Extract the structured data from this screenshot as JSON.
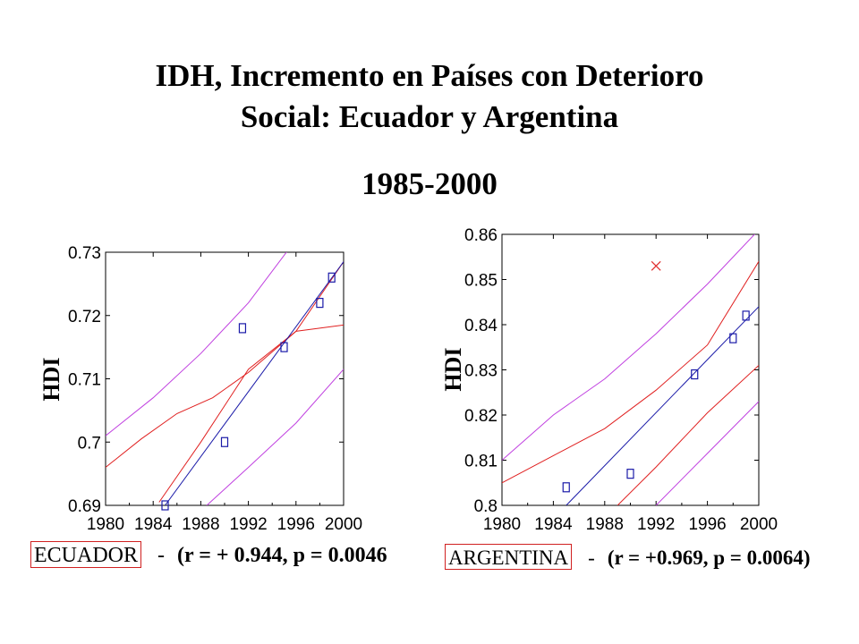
{
  "title": {
    "line1": "IDH, Incremento en Países con Deterioro",
    "line2": "Social: Ecuador y Argentina",
    "period": "1985-2000"
  },
  "colors": {
    "points": "#1a1aa8",
    "fit": "#1a1aa8",
    "confidence": "#e02020",
    "prediction": "#c040e0",
    "outlier": "#e03030",
    "highlight_box": "#d02020"
  },
  "chart_data": [
    {
      "type": "scatter",
      "name": "ECUADOR",
      "ylabel": "HDI",
      "xlim": [
        1980,
        2000
      ],
      "ylim": [
        0.69,
        0.73
      ],
      "xticks": [
        1980,
        1984,
        1988,
        1992,
        1996,
        2000
      ],
      "yticks": [
        0.69,
        0.7,
        0.71,
        0.72,
        0.73
      ],
      "xtick_labels": [
        "1980",
        "1984",
        "1988",
        "1992",
        "1996",
        "2000"
      ],
      "ytick_labels": [
        "0.69",
        "0.7",
        "0.71",
        "0.72",
        "0.73"
      ],
      "points": [
        {
          "x": 1985,
          "y": 0.69
        },
        {
          "x": 1990,
          "y": 0.7
        },
        {
          "x": 1991.5,
          "y": 0.718
        },
        {
          "x": 1995,
          "y": 0.715
        },
        {
          "x": 1998,
          "y": 0.722
        },
        {
          "x": 1999,
          "y": 0.726
        }
      ],
      "fit_line": [
        {
          "x": 1985,
          "y": 0.69
        },
        {
          "x": 2000,
          "y": 0.7285
        }
      ],
      "confidence_bands": {
        "upper": [
          [
            1984.5,
            0.6905
          ],
          [
            1988,
            0.7
          ],
          [
            1992,
            0.7115
          ],
          [
            1996,
            0.7175
          ],
          [
            2000,
            0.7185
          ]
        ],
        "lower": [
          [
            1980,
            0.696
          ],
          [
            1983,
            0.7005
          ],
          [
            1986,
            0.7045
          ],
          [
            1989,
            0.707
          ],
          [
            1992,
            0.711
          ],
          [
            1996,
            0.7175
          ],
          [
            2000,
            0.7285
          ]
        ]
      },
      "prediction_bands": {
        "upper": [
          [
            1980,
            0.701
          ],
          [
            1984,
            0.707
          ],
          [
            1988,
            0.714
          ],
          [
            1992,
            0.722
          ],
          [
            1996,
            0.732
          ]
        ],
        "lower": [
          [
            1988.5,
            0.69
          ],
          [
            1992,
            0.696
          ],
          [
            1996,
            0.703
          ],
          [
            2000,
            0.7115
          ]
        ]
      },
      "footer": {
        "country": "ECUADOR",
        "dash": "-",
        "stats": "(r = + 0.944, p = 0.0046"
      }
    },
    {
      "type": "scatter",
      "name": "ARGENTINA",
      "ylabel": "HDI",
      "xlim": [
        1980,
        2000
      ],
      "ylim": [
        0.8,
        0.86
      ],
      "xticks": [
        1980,
        1984,
        1988,
        1992,
        1996,
        2000
      ],
      "yticks": [
        0.8,
        0.81,
        0.82,
        0.83,
        0.84,
        0.85,
        0.86
      ],
      "xtick_labels": [
        "1980",
        "1984",
        "1988",
        "1992",
        "1996",
        "2000"
      ],
      "ytick_labels": [
        "0.8",
        "0.81",
        "0.82",
        "0.83",
        "0.84",
        "0.85",
        "0.86"
      ],
      "points": [
        {
          "x": 1985,
          "y": 0.804
        },
        {
          "x": 1990,
          "y": 0.807
        },
        {
          "x": 1995,
          "y": 0.829
        },
        {
          "x": 1998,
          "y": 0.837
        },
        {
          "x": 1999,
          "y": 0.842
        }
      ],
      "outliers": [
        {
          "x": 1992,
          "y": 0.853
        }
      ],
      "fit_line": [
        {
          "x": 1985,
          "y": 0.8
        },
        {
          "x": 2000,
          "y": 0.844
        }
      ],
      "confidence_bands": {
        "upper": [
          [
            1980,
            0.805
          ],
          [
            1984,
            0.811
          ],
          [
            1988,
            0.817
          ],
          [
            1992,
            0.8255
          ],
          [
            1996,
            0.8355
          ],
          [
            2000,
            0.854
          ]
        ],
        "lower": [
          [
            1989,
            0.8
          ],
          [
            1992,
            0.8085
          ],
          [
            1996,
            0.8205
          ],
          [
            2000,
            0.831
          ]
        ]
      },
      "prediction_bands": {
        "upper": [
          [
            1980,
            0.81
          ],
          [
            1984,
            0.82
          ],
          [
            1988,
            0.828
          ],
          [
            1992,
            0.838
          ],
          [
            1996,
            0.849
          ],
          [
            2000,
            0.861
          ]
        ],
        "lower": [
          [
            1992,
            0.8
          ],
          [
            1996,
            0.8115
          ],
          [
            2000,
            0.823
          ]
        ]
      },
      "footer": {
        "country": "ARGENTINA",
        "dash": "-",
        "stats": "(r = +0.969, p = 0.0064)"
      }
    }
  ]
}
